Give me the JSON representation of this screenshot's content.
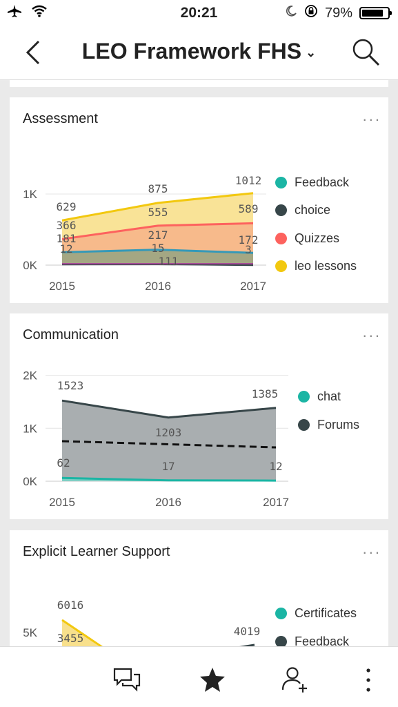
{
  "status": {
    "time": "20:21",
    "battery": "79%",
    "battery_level": 0.79
  },
  "nav": {
    "title": "LEO Framework FHS"
  },
  "cards": [
    {
      "title": "Assessment",
      "more": "...",
      "legend": [
        {
          "label": "Feedback",
          "color": "#1bb5a4"
        },
        {
          "label": "choice",
          "color": "#374649"
        },
        {
          "label": "Quizzes",
          "color": "#fd625e"
        },
        {
          "label": "leo lessons",
          "color": "#f2c80f"
        }
      ],
      "chart_data": {
        "type": "area",
        "x": [
          "2015",
          "2016",
          "2017"
        ],
        "yticks": [
          "0K",
          "1K"
        ],
        "ylim": [
          0,
          1100
        ],
        "series": [
          {
            "name": "leo lessons",
            "values": [
              629,
              875,
              1012
            ]
          },
          {
            "name": "Quizzes",
            "values": [
              366,
              555,
              589
            ]
          },
          {
            "name": "choice",
            "values": [
              181,
              217,
              172
            ]
          },
          {
            "name": "Feedback",
            "values": [
              12,
              15,
              3
            ]
          }
        ],
        "labels": [
          {
            "text": "629"
          },
          {
            "text": "875"
          },
          {
            "text": "1012"
          },
          {
            "text": "366"
          },
          {
            "text": "555"
          },
          {
            "text": "589"
          },
          {
            "text": "181"
          },
          {
            "text": "217"
          },
          {
            "text": "172"
          },
          {
            "text": "12"
          },
          {
            "text": "15"
          },
          {
            "text": "3"
          },
          {
            "text": "111"
          }
        ]
      }
    },
    {
      "title": "Communication",
      "more": "...",
      "legend": [
        {
          "label": "chat",
          "color": "#1bb5a4"
        },
        {
          "label": "Forums",
          "color": "#374649"
        }
      ],
      "chart_data": {
        "type": "area",
        "x": [
          "2015",
          "2016",
          "2017"
        ],
        "yticks": [
          "0K",
          "1K",
          "2K"
        ],
        "ylim": [
          0,
          2000
        ],
        "series": [
          {
            "name": "Forums",
            "values": [
              1523,
              1203,
              1385
            ]
          },
          {
            "name": "chat",
            "values": [
              62,
              17,
              12
            ]
          }
        ],
        "labels": [
          {
            "text": "1523"
          },
          {
            "text": "1203"
          },
          {
            "text": "1385"
          },
          {
            "text": "62"
          },
          {
            "text": "17"
          },
          {
            "text": "12"
          }
        ]
      }
    },
    {
      "title": "Explicit Learner Support",
      "more": "...",
      "legend": [
        {
          "label": "Certificates",
          "color": "#1bb5a4"
        },
        {
          "label": "Feedback",
          "color": "#374649"
        }
      ],
      "chart_data": {
        "type": "area",
        "yticks": [
          "5K"
        ],
        "labels": [
          {
            "text": "6016"
          },
          {
            "text": "3455"
          },
          {
            "text": "4019"
          }
        ]
      }
    }
  ]
}
